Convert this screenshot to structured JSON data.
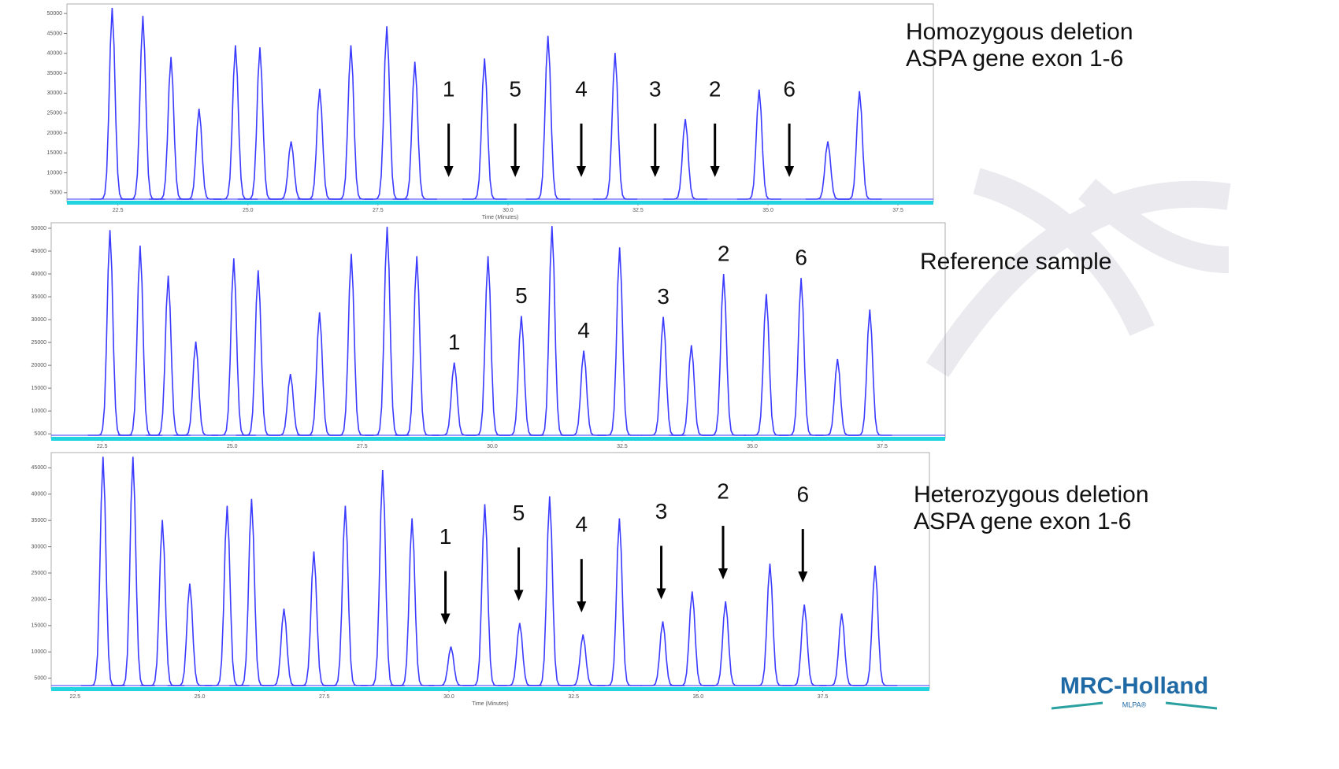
{
  "chart_data": [
    {
      "type": "peaks",
      "label": [
        "Homozygous deletion",
        "ASPA gene exon 1-6"
      ],
      "x_label": "Time (Minutes)",
      "color": "#3b3bff",
      "arrows": true,
      "x": [
        22.39,
        22.98,
        23.52,
        24.06,
        24.76,
        25.23,
        25.83,
        26.38,
        26.98,
        27.67,
        28.21,
        29.55,
        30.77,
        32.06,
        33.41,
        34.83,
        36.15,
        36.76
      ],
      "values": [
        51400,
        49400,
        39100,
        26100,
        42000,
        41500,
        17900,
        31100,
        42000,
        46800,
        37900,
        38700,
        44400,
        40100,
        23500,
        30900,
        17900,
        30500
      ],
      "annotations": [
        {
          "text": "1",
          "x": 28.86
        },
        {
          "text": "5",
          "x": 30.14
        },
        {
          "text": "4",
          "x": 31.41
        },
        {
          "text": "3",
          "x": 32.83
        },
        {
          "text": "2",
          "x": 33.98
        },
        {
          "text": "6",
          "x": 35.41
        }
      ],
      "xlim": [
        21.52,
        38.18
      ],
      "ylim": [
        2600,
        52400
      ],
      "xticks": [
        22.5,
        {
          "value": 25,
          "label": "25.0"
        },
        27.5,
        {
          "value": 30,
          "label": "30.0"
        },
        32.5,
        {
          "value": 35,
          "label": "35.0"
        },
        37.5
      ],
      "yticks": [
        5000,
        10000,
        15000,
        20000,
        25000,
        30000,
        35000,
        40000,
        45000,
        50000
      ]
    },
    {
      "type": "peaks",
      "label": [
        "Reference sample"
      ],
      "color": "#3b3bff",
      "arrows": false,
      "x": [
        22.65,
        23.23,
        23.77,
        24.3,
        25.03,
        25.5,
        26.12,
        26.68,
        27.29,
        27.98,
        28.55,
        29.27,
        29.92,
        30.56,
        31.15,
        31.76,
        32.45,
        33.29,
        33.83,
        34.45,
        35.27,
        35.94,
        36.64,
        37.26
      ],
      "values": [
        49600,
        46200,
        39600,
        25200,
        43400,
        40800,
        18100,
        31600,
        44400,
        50300,
        43900,
        20600,
        43900,
        30800,
        50500,
        23200,
        45800,
        30600,
        24400,
        40000,
        35600,
        39100,
        21400,
        32200
      ],
      "annotations": [
        {
          "text": "1",
          "x": 29.27
        },
        {
          "text": "5",
          "x": 30.56
        },
        {
          "text": "4",
          "x": 31.76
        },
        {
          "text": "3",
          "x": 33.29
        },
        {
          "text": "2",
          "x": 34.45
        },
        {
          "text": "6",
          "x": 35.94
        }
      ],
      "xlim": [
        21.52,
        38.71
      ],
      "ylim": [
        4000,
        51200
      ],
      "xticks": [
        22.5,
        {
          "value": 25,
          "label": "25.0"
        },
        27.5,
        {
          "value": 30,
          "label": "30.0"
        },
        32.5,
        {
          "value": 35,
          "label": "35.0"
        },
        37.5
      ],
      "yticks": [
        5000,
        10000,
        15000,
        20000,
        25000,
        30000,
        35000,
        40000,
        45000,
        50000
      ]
    },
    {
      "type": "peaks",
      "label": [
        "Heterozygous deletion",
        "ASPA gene exon 1-6"
      ],
      "x_label": "Time (Minutes)",
      "color": "#3b3bff",
      "arrows": true,
      "x": [
        23.06,
        23.66,
        24.25,
        24.8,
        25.55,
        26.04,
        26.69,
        27.29,
        27.92,
        28.67,
        29.26,
        30.04,
        30.72,
        31.42,
        32.02,
        32.69,
        33.42,
        34.29,
        34.88,
        35.55,
        36.44,
        37.13,
        37.88,
        38.55
      ],
      "values": [
        47100,
        47100,
        35100,
        23000,
        37800,
        39100,
        18200,
        29100,
        37800,
        44600,
        35400,
        11000,
        38100,
        15500,
        39600,
        13300,
        35400,
        15800,
        21500,
        19600,
        26800,
        19000,
        17300,
        26400
      ],
      "annotations": [
        {
          "text": "1",
          "x": 29.93
        },
        {
          "text": "5",
          "x": 31.4
        },
        {
          "text": "4",
          "x": 32.66
        },
        {
          "text": "3",
          "x": 34.26
        },
        {
          "text": "2",
          "x": 35.5
        },
        {
          "text": "6",
          "x": 37.1
        }
      ],
      "xlim": [
        22.02,
        39.64
      ],
      "ylim": [
        3000,
        47900
      ],
      "xticks": [
        22.5,
        {
          "value": 25,
          "label": "25.0"
        },
        27.5,
        {
          "value": 30,
          "label": "30.0"
        },
        32.5,
        {
          "value": 35,
          "label": "35.0"
        },
        37.5
      ],
      "yticks": [
        5000,
        10000,
        15000,
        20000,
        25000,
        30000,
        35000,
        40000,
        45000
      ]
    }
  ],
  "logo": {
    "name": "MRC-Holland",
    "sub": "MLPA®"
  }
}
